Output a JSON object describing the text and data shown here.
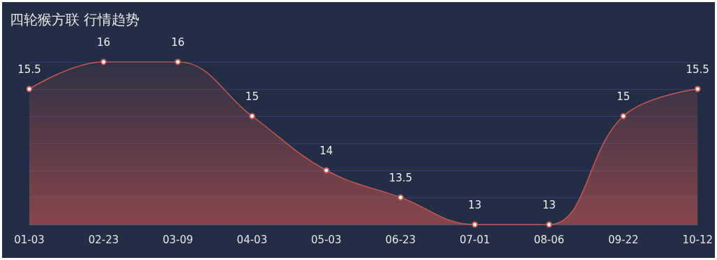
{
  "chart_data": {
    "type": "area",
    "title": "四轮猴方联 行情趋势",
    "categories": [
      "01-03",
      "02-23",
      "03-09",
      "04-03",
      "05-03",
      "06-23",
      "07-01",
      "08-06",
      "09-22",
      "10-12"
    ],
    "series": [
      {
        "color": "#c9574f",
        "values": [
          15.5,
          16,
          16,
          15,
          14,
          13.5,
          13,
          13,
          15,
          15.5
        ]
      }
    ],
    "ylim": [
      13,
      16
    ],
    "yticks": [
      {
        "value": 13,
        "label": null
      },
      {
        "value": 13.5,
        "label": null
      },
      {
        "value": 14,
        "label": null
      },
      {
        "value": 14.5,
        "label": null
      },
      {
        "value": 15,
        "label": null
      },
      {
        "value": 15.5,
        "label": null
      },
      {
        "value": 16,
        "label": null
      }
    ],
    "tick_labels": "x",
    "grid": "y",
    "marker": "circle",
    "data_labels": true
  }
}
